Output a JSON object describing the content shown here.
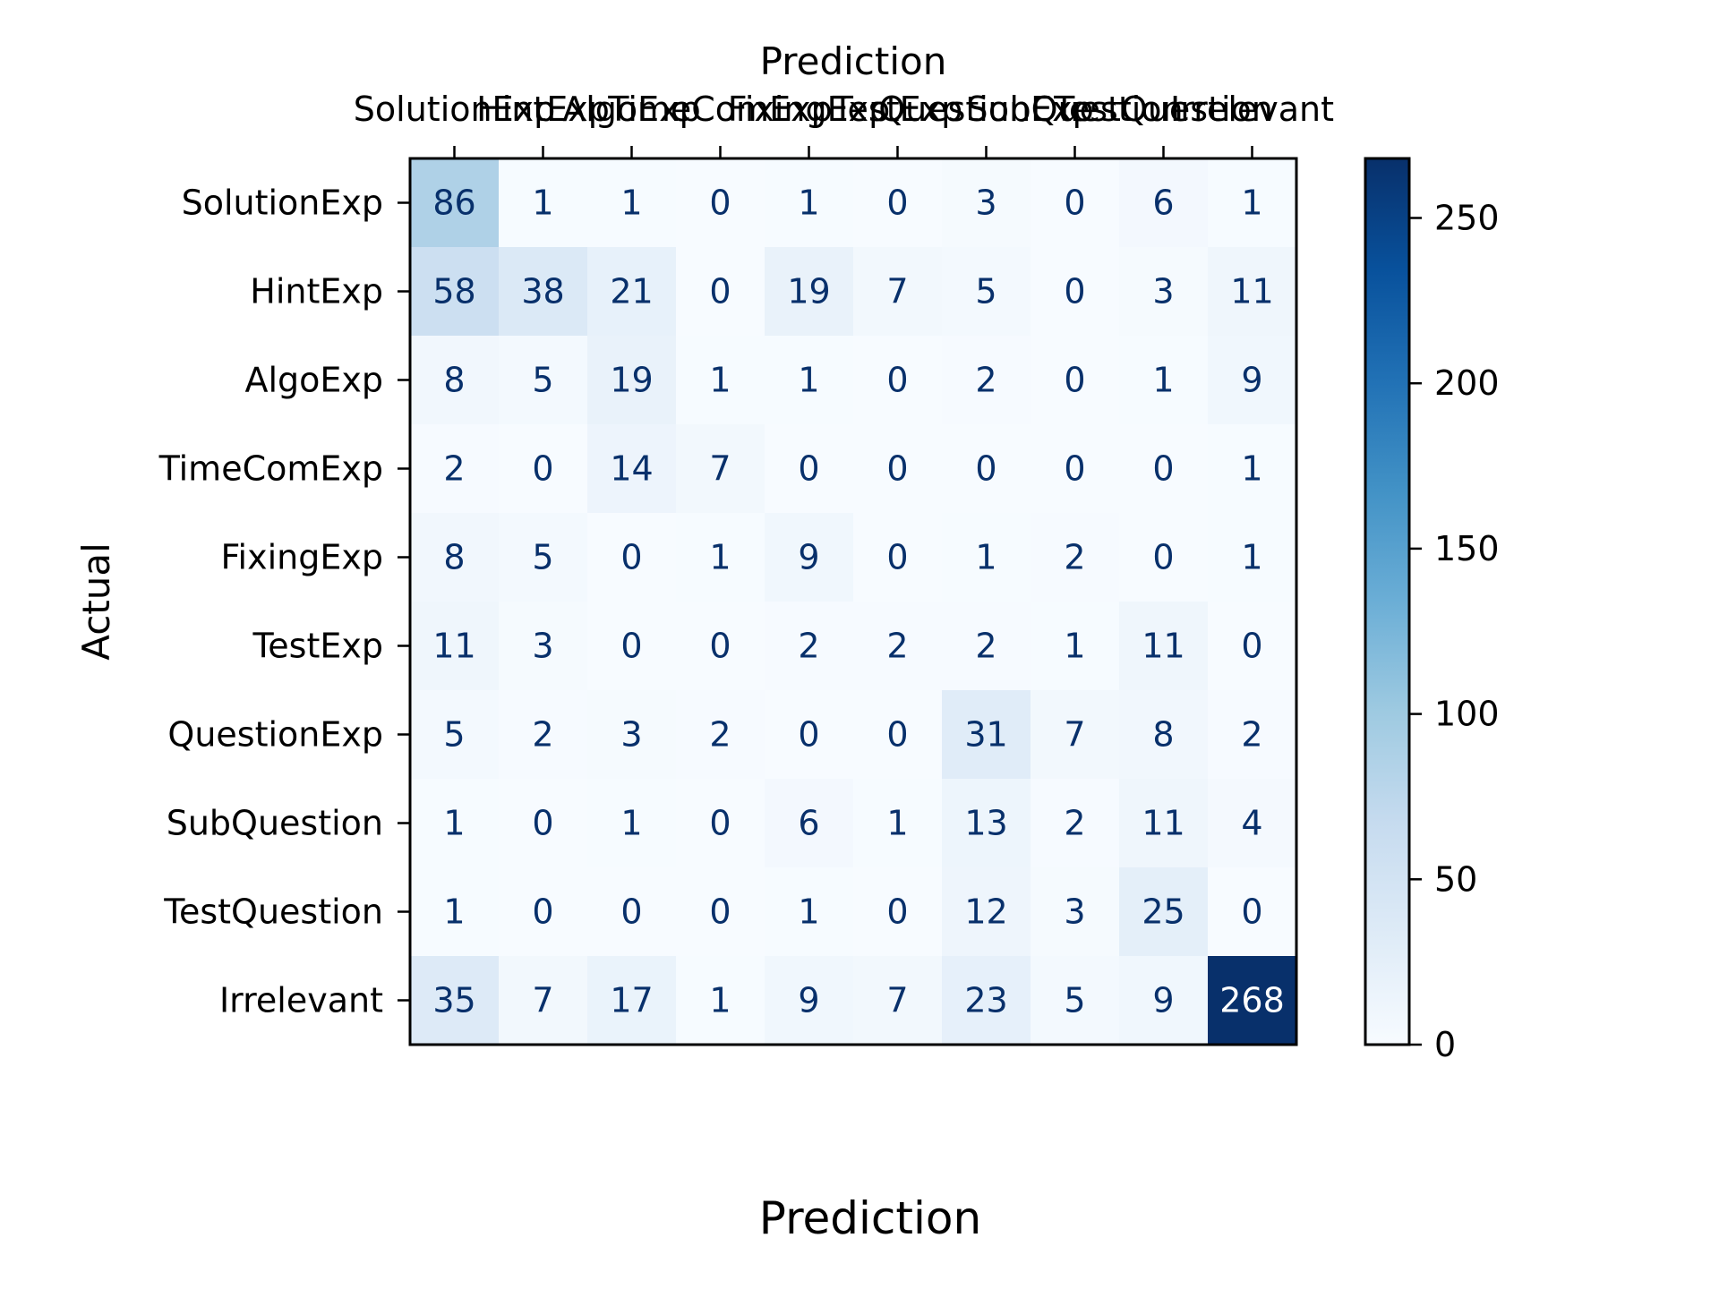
{
  "chart_data": {
    "type": "heatmap",
    "title": "",
    "xlabel_top": "Prediction",
    "xlabel_bottom": "Prediction",
    "ylabel": "Actual",
    "x_categories": [
      "SolutionExp",
      "HintExp",
      "AlgoExp",
      "TimeComExp",
      "FixingExp",
      "TestExp",
      "QuestionExp",
      "SubQuestion",
      "TestQuestion",
      "Irrelevant"
    ],
    "y_categories": [
      "SolutionExp",
      "HintExp",
      "AlgoExp",
      "TimeComExp",
      "FixingExp",
      "TestExp",
      "QuestionExp",
      "SubQuestion",
      "TestQuestion",
      "Irrelevant"
    ],
    "values": [
      [
        86,
        1,
        1,
        0,
        1,
        0,
        3,
        0,
        6,
        1
      ],
      [
        58,
        38,
        21,
        0,
        19,
        7,
        5,
        0,
        3,
        11
      ],
      [
        8,
        5,
        19,
        1,
        1,
        0,
        2,
        0,
        1,
        9
      ],
      [
        2,
        0,
        14,
        7,
        0,
        0,
        0,
        0,
        0,
        1
      ],
      [
        8,
        5,
        0,
        1,
        9,
        0,
        1,
        2,
        0,
        1
      ],
      [
        11,
        3,
        0,
        0,
        2,
        2,
        2,
        1,
        11,
        0
      ],
      [
        5,
        2,
        3,
        2,
        0,
        0,
        31,
        7,
        8,
        2
      ],
      [
        1,
        0,
        1,
        0,
        6,
        1,
        13,
        2,
        11,
        4
      ],
      [
        1,
        0,
        0,
        0,
        1,
        0,
        12,
        3,
        25,
        0
      ],
      [
        35,
        7,
        17,
        1,
        9,
        7,
        23,
        5,
        9,
        268
      ]
    ],
    "colorbar": {
      "colormap": "Blues",
      "min": 0,
      "max": 268,
      "ticks": [
        0,
        50,
        100,
        150,
        200,
        250
      ]
    },
    "colors": {
      "dark_text": "#08306b",
      "light_text": "#ffffff"
    }
  }
}
